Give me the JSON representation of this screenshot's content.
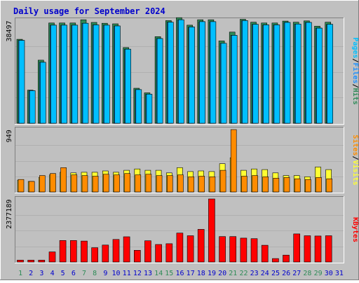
{
  "title": "Daily usage for September 2024",
  "colors": {
    "background": "#c0c0c0",
    "grid": "#b0b0b0",
    "border_light": "#ffffff",
    "border_dark": "#808080",
    "title": "#0000cc",
    "hits": "#2e8b57",
    "files": "#1e90ff",
    "pages": "#00bfff",
    "visits": "#ffff33",
    "sites": "#ff8c00",
    "kbytes": "#ff0000",
    "weekend_day": "#2e8b57",
    "weekday": "#0000cc"
  },
  "chart_data": [
    {
      "type": "bar",
      "name": "hits-files-pages",
      "y_max_label": "38497",
      "ylim": [
        0,
        38497
      ],
      "right_labels": [
        "Pages",
        "Files",
        "Hits"
      ],
      "categories": [
        "1",
        "2",
        "3",
        "4",
        "5",
        "6",
        "7",
        "8",
        "9",
        "10",
        "11",
        "12",
        "13",
        "14",
        "15",
        "16",
        "17",
        "18",
        "19",
        "20",
        "21",
        "22",
        "23",
        "24",
        "25",
        "26",
        "27",
        "28",
        "29",
        "30",
        "31"
      ],
      "series": [
        {
          "name": "Hits",
          "values": [
            31400,
            12400,
            23600,
            37500,
            37500,
            37500,
            38700,
            37700,
            37400,
            37200,
            28300,
            13100,
            11400,
            32400,
            38400,
            39500,
            36700,
            38700,
            38700,
            30800,
            34100,
            38900,
            37800,
            37500,
            37500,
            38200,
            37800,
            38300,
            36300,
            37800,
            0
          ]
        },
        {
          "name": "Files",
          "values": [
            31000,
            12200,
            22800,
            36700,
            36700,
            36700,
            37400,
            36800,
            36700,
            36400,
            27700,
            12600,
            10900,
            31700,
            37800,
            38700,
            36000,
            38000,
            38000,
            29900,
            32900,
            38400,
            37000,
            36800,
            36800,
            37700,
            37100,
            37700,
            35600,
            37000,
            0
          ]
        },
        {
          "name": "Pages",
          "values": [
            31000,
            12200,
            22800,
            36700,
            36700,
            36700,
            37400,
            36800,
            36700,
            36400,
            27700,
            12600,
            10900,
            31700,
            37800,
            38700,
            36000,
            38000,
            38000,
            29900,
            32900,
            38400,
            37000,
            36800,
            36800,
            37700,
            37100,
            37700,
            35600,
            37000,
            0
          ]
        }
      ]
    },
    {
      "type": "bar",
      "name": "visits-sites",
      "y_max_label": "949",
      "ylim": [
        0,
        949
      ],
      "right_labels": [
        "Sites",
        "Visits"
      ],
      "categories": [
        "1",
        "2",
        "3",
        "4",
        "5",
        "6",
        "7",
        "8",
        "9",
        "10",
        "11",
        "12",
        "13",
        "14",
        "15",
        "16",
        "17",
        "18",
        "19",
        "20",
        "21",
        "22",
        "23",
        "24",
        "25",
        "26",
        "27",
        "28",
        "29",
        "30",
        "31"
      ],
      "series": [
        {
          "name": "Visits",
          "values": [
            180,
            160,
            220,
            260,
            300,
            290,
            300,
            300,
            320,
            300,
            330,
            350,
            330,
            330,
            290,
            370,
            310,
            320,
            310,
            430,
            520,
            330,
            350,
            340,
            290,
            250,
            250,
            230,
            380,
            340,
            0
          ]
        },
        {
          "name": "Sites",
          "values": [
            190,
            160,
            250,
            280,
            370,
            260,
            250,
            240,
            270,
            260,
            280,
            260,
            270,
            250,
            250,
            260,
            230,
            240,
            230,
            330,
            949,
            240,
            250,
            230,
            210,
            220,
            200,
            190,
            220,
            200,
            0
          ]
        }
      ]
    },
    {
      "type": "bar",
      "name": "kbytes",
      "y_max_label": "2377189",
      "ylim": [
        0,
        2377189
      ],
      "right_labels": [
        "KBytes"
      ],
      "categories": [
        "1",
        "2",
        "3",
        "4",
        "5",
        "6",
        "7",
        "8",
        "9",
        "10",
        "11",
        "12",
        "13",
        "14",
        "15",
        "16",
        "17",
        "18",
        "19",
        "20",
        "21",
        "22",
        "23",
        "24",
        "25",
        "26",
        "27",
        "28",
        "29",
        "30",
        "31"
      ],
      "series": [
        {
          "name": "KBytes",
          "values": [
            70000,
            70000,
            70000,
            380000,
            810000,
            810000,
            790000,
            540000,
            640000,
            850000,
            950000,
            440000,
            800000,
            660000,
            690000,
            1090000,
            990000,
            1230000,
            2377189,
            960000,
            960000,
            900000,
            880000,
            630000,
            130000,
            260000,
            1060000,
            990000,
            980000,
            990000,
            0
          ]
        }
      ]
    }
  ],
  "x_labels": [
    {
      "day": "1",
      "weekend": true
    },
    {
      "day": "2",
      "weekend": false
    },
    {
      "day": "3",
      "weekend": false
    },
    {
      "day": "4",
      "weekend": false
    },
    {
      "day": "5",
      "weekend": false
    },
    {
      "day": "6",
      "weekend": false
    },
    {
      "day": "7",
      "weekend": true
    },
    {
      "day": "8",
      "weekend": true
    },
    {
      "day": "9",
      "weekend": false
    },
    {
      "day": "10",
      "weekend": false
    },
    {
      "day": "11",
      "weekend": false
    },
    {
      "day": "12",
      "weekend": false
    },
    {
      "day": "13",
      "weekend": false
    },
    {
      "day": "14",
      "weekend": true
    },
    {
      "day": "15",
      "weekend": true
    },
    {
      "day": "16",
      "weekend": false
    },
    {
      "day": "17",
      "weekend": false
    },
    {
      "day": "18",
      "weekend": false
    },
    {
      "day": "19",
      "weekend": false
    },
    {
      "day": "20",
      "weekend": false
    },
    {
      "day": "21",
      "weekend": true
    },
    {
      "day": "22",
      "weekend": true
    },
    {
      "day": "23",
      "weekend": false
    },
    {
      "day": "24",
      "weekend": false
    },
    {
      "day": "25",
      "weekend": false
    },
    {
      "day": "26",
      "weekend": false
    },
    {
      "day": "27",
      "weekend": false
    },
    {
      "day": "28",
      "weekend": true
    },
    {
      "day": "29",
      "weekend": true
    },
    {
      "day": "30",
      "weekend": false
    },
    {
      "day": "31",
      "weekend": false
    }
  ]
}
